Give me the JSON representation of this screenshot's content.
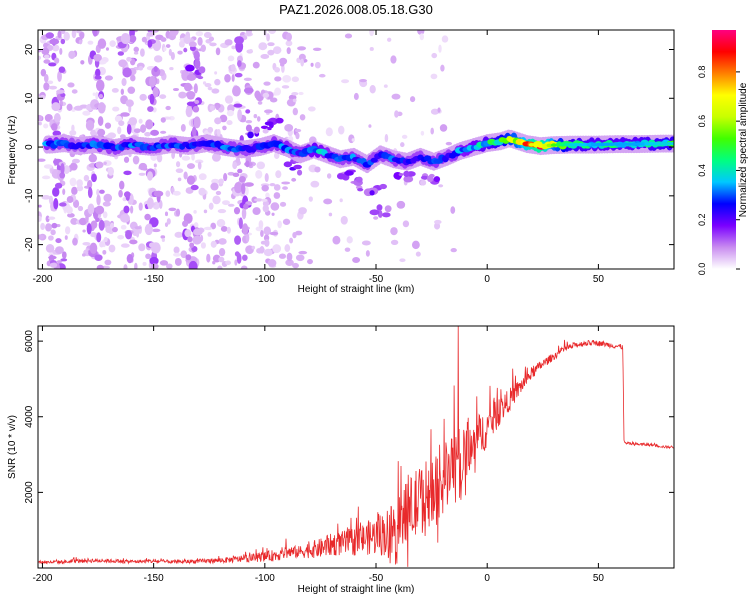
{
  "title": "PAZ1.2026.008.05.18.G30",
  "chart_data": [
    {
      "type": "heatmap",
      "title": "PAZ1.2026.008.05.18.G30",
      "xlabel": "Height of straight line (km)",
      "ylabel": "Frequency (Hz)",
      "xlim": [
        -202,
        84
      ],
      "ylim": [
        -25,
        24
      ],
      "xticks": [
        -200,
        -150,
        -100,
        -50,
        0,
        50
      ],
      "xtick_labels": [
        "-200",
        "-150",
        "-100",
        "-50",
        "0",
        "50"
      ],
      "yticks": [
        -20,
        -10,
        0,
        10,
        20
      ],
      "ytick_labels": [
        "-20",
        "-10",
        "0",
        "10",
        "20"
      ],
      "colorbar": {
        "label": "Normalized spectral amplitude",
        "ticks": [
          0.0,
          0.2,
          0.4,
          0.6,
          0.8
        ],
        "tick_labels": [
          "0.0",
          "0.2",
          "0.4",
          "0.6",
          "0.8"
        ],
        "range": [
          0,
          0.97
        ],
        "colors": [
          "#ffffff",
          "#c98cf0",
          "#7a00ff",
          "#0000ff",
          "#00c8ff",
          "#00ff80",
          "#40ff00",
          "#c8ff00",
          "#ffff00",
          "#ff8000",
          "#ff0000",
          "#ff0080"
        ]
      },
      "ridge": [
        {
          "x": -196,
          "y": 0.5,
          "a": 0.35
        },
        {
          "x": -190,
          "y": 0.8,
          "a": 0.3
        },
        {
          "x": -184,
          "y": 0.2,
          "a": 0.25
        },
        {
          "x": -176,
          "y": 0.6,
          "a": 0.35
        },
        {
          "x": -168,
          "y": -0.2,
          "a": 0.3
        },
        {
          "x": -160,
          "y": 0.4,
          "a": 0.35
        },
        {
          "x": -150,
          "y": 0.0,
          "a": 0.3
        },
        {
          "x": -142,
          "y": 0.6,
          "a": 0.32
        },
        {
          "x": -134,
          "y": 0.2,
          "a": 0.3
        },
        {
          "x": -126,
          "y": 0.8,
          "a": 0.3
        },
        {
          "x": -118,
          "y": 0.0,
          "a": 0.32
        },
        {
          "x": -110,
          "y": -0.5,
          "a": 0.3
        },
        {
          "x": -102,
          "y": 0.0,
          "a": 0.3
        },
        {
          "x": -96,
          "y": 0.8,
          "a": 0.33
        },
        {
          "x": -90,
          "y": -0.2,
          "a": 0.35
        },
        {
          "x": -84,
          "y": -1.5,
          "a": 0.3
        },
        {
          "x": -78,
          "y": -0.5,
          "a": 0.42
        },
        {
          "x": -72,
          "y": -1.5,
          "a": 0.35
        },
        {
          "x": -66,
          "y": -2.5,
          "a": 0.3
        },
        {
          "x": -60,
          "y": -2.0,
          "a": 0.33
        },
        {
          "x": -54,
          "y": -3.5,
          "a": 0.3
        },
        {
          "x": -48,
          "y": -1.5,
          "a": 0.3
        },
        {
          "x": -42,
          "y": -2.5,
          "a": 0.32
        },
        {
          "x": -36,
          "y": -3.0,
          "a": 0.3
        },
        {
          "x": -30,
          "y": -2.0,
          "a": 0.3
        },
        {
          "x": -24,
          "y": -3.0,
          "a": 0.33
        },
        {
          "x": -18,
          "y": -2.0,
          "a": 0.3
        },
        {
          "x": -12,
          "y": -0.8,
          "a": 0.35
        },
        {
          "x": -6,
          "y": 0.0,
          "a": 0.4
        },
        {
          "x": 0,
          "y": 0.8,
          "a": 0.45
        },
        {
          "x": 6,
          "y": 1.2,
          "a": 0.55
        },
        {
          "x": 10,
          "y": 1.8,
          "a": 0.65
        },
        {
          "x": 14,
          "y": 1.2,
          "a": 0.7
        },
        {
          "x": 18,
          "y": 0.6,
          "a": 0.85
        },
        {
          "x": 24,
          "y": 0.2,
          "a": 0.95
        },
        {
          "x": 30,
          "y": 0.4,
          "a": 0.7
        },
        {
          "x": 38,
          "y": 0.5,
          "a": 0.5
        },
        {
          "x": 48,
          "y": 0.5,
          "a": 0.45
        },
        {
          "x": 58,
          "y": 0.6,
          "a": 0.45
        },
        {
          "x": 68,
          "y": 0.6,
          "a": 0.45
        },
        {
          "x": 78,
          "y": 0.7,
          "a": 0.5
        }
      ],
      "branches": [
        {
          "x": -104,
          "y": 3.5,
          "a": 0.22
        },
        {
          "x": -96,
          "y": 4.2,
          "a": 0.22
        },
        {
          "x": -86,
          "y": -4.0,
          "a": 0.2
        },
        {
          "x": -62,
          "y": -5.5,
          "a": 0.2
        },
        {
          "x": -56,
          "y": -7.5,
          "a": 0.2
        },
        {
          "x": -50,
          "y": -9.0,
          "a": 0.2
        },
        {
          "x": -48,
          "y": -13.5,
          "a": 0.14
        },
        {
          "x": -38,
          "y": -6.0,
          "a": 0.18
        },
        {
          "x": -26,
          "y": -7.0,
          "a": 0.18
        },
        {
          "x": -132,
          "y": 15.0,
          "a": 0.18
        },
        {
          "x": -132,
          "y": 9.5,
          "a": 0.16
        },
        {
          "x": -193,
          "y": 22.5,
          "a": 0.12
        },
        {
          "x": -193,
          "y": -23.0,
          "a": 0.12
        }
      ]
    },
    {
      "type": "line",
      "xlabel": "Height of straight line (km)",
      "ylabel": "SNR (10 * v/v)",
      "xlim": [
        -202,
        84
      ],
      "ylim": [
        0,
        6400
      ],
      "xticks": [
        -200,
        -150,
        -100,
        -50,
        0,
        50
      ],
      "xtick_labels": [
        "-200",
        "-150",
        "-100",
        "-50",
        "0",
        "50"
      ],
      "yticks": [
        2000,
        4000,
        6000
      ],
      "ytick_labels": [
        "2000",
        "4000",
        "6000"
      ],
      "series": [
        {
          "name": "SNR",
          "color": "#e8292b",
          "x": [
            -202,
            -190,
            -180,
            -170,
            -160,
            -150,
            -140,
            -130,
            -120,
            -110,
            -100,
            -95,
            -90,
            -85,
            -80,
            -75,
            -70,
            -65,
            -60,
            -55,
            -50,
            -45,
            -40,
            -35,
            -30,
            -25,
            -20,
            -15,
            -10,
            -5,
            0,
            5,
            10,
            15,
            20,
            25,
            30,
            35,
            40,
            45,
            50,
            55,
            60,
            61,
            61.5,
            62,
            65,
            70,
            75,
            80,
            84
          ],
          "values": [
            150,
            160,
            200,
            190,
            170,
            180,
            160,
            180,
            200,
            240,
            300,
            340,
            420,
            420,
            480,
            520,
            620,
            650,
            700,
            780,
            850,
            950,
            1200,
            1500,
            1800,
            2100,
            2400,
            2700,
            3100,
            3400,
            3700,
            4100,
            4450,
            4800,
            5150,
            5400,
            5600,
            5800,
            5900,
            5950,
            5950,
            5900,
            5850,
            5850,
            3350,
            3300,
            3280,
            3270,
            3250,
            3200,
            3200
          ],
          "noise": [
            40,
            45,
            60,
            50,
            45,
            50,
            45,
            55,
            70,
            90,
            130,
            160,
            180,
            160,
            220,
            260,
            300,
            330,
            380,
            430,
            520,
            650,
            800,
            900,
            950,
            900,
            900,
            850,
            750,
            650,
            500,
            380,
            300,
            220,
            160,
            120,
            100,
            90,
            80,
            70,
            70,
            70,
            70,
            70,
            40,
            40,
            35,
            35,
            35,
            35,
            35
          ]
        }
      ]
    }
  ]
}
